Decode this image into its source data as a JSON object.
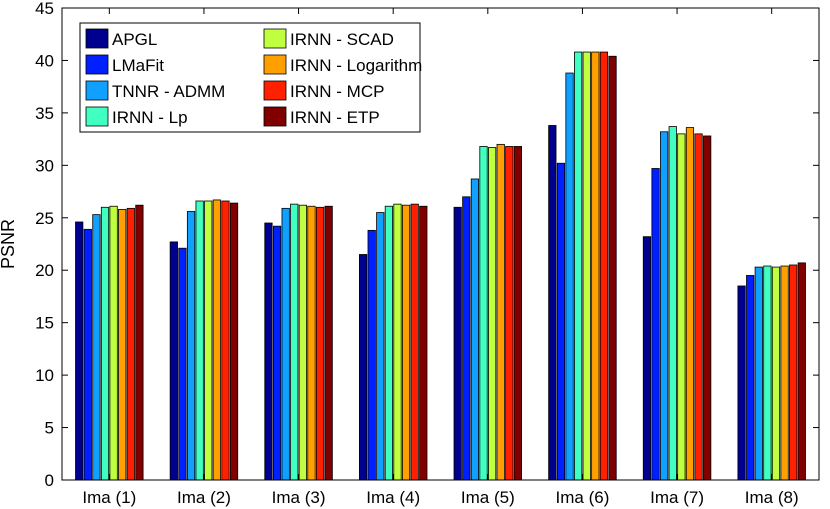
{
  "chart_data": {
    "type": "bar",
    "title": "",
    "xlabel": "",
    "ylabel": "PSNR",
    "ylim": [
      0,
      45
    ],
    "yticks": [
      0,
      5,
      10,
      15,
      20,
      25,
      30,
      35,
      40,
      45
    ],
    "grid": false,
    "legend_position": "top-left",
    "categories": [
      "Ima (1)",
      "Ima (2)",
      "Ima (3)",
      "Ima (4)",
      "Ima (5)",
      "Ima (6)",
      "Ima (7)",
      "Ima (8)"
    ],
    "series": [
      {
        "name": "APGL",
        "color": "#00008f",
        "values": [
          24.6,
          22.7,
          24.5,
          21.5,
          26.0,
          33.8,
          23.2,
          18.5
        ]
      },
      {
        "name": "LMaFit",
        "color": "#0020ff",
        "values": [
          23.9,
          22.1,
          24.2,
          23.8,
          27.0,
          30.2,
          29.7,
          19.5
        ]
      },
      {
        "name": "TNNR - ADMM",
        "color": "#10a0ff",
        "values": [
          25.3,
          25.6,
          25.9,
          25.5,
          28.7,
          38.8,
          33.2,
          20.3
        ]
      },
      {
        "name": "IRNN - Lp",
        "color": "#40ffc0",
        "values": [
          26.0,
          26.6,
          26.3,
          26.1,
          31.8,
          40.8,
          33.7,
          20.4
        ]
      },
      {
        "name": "IRNN - SCAD",
        "color": "#c0ff40",
        "values": [
          26.1,
          26.6,
          26.2,
          26.3,
          31.7,
          40.8,
          33.0,
          20.3
        ]
      },
      {
        "name": "IRNN - Logarithm",
        "color": "#ffa000",
        "values": [
          25.8,
          26.7,
          26.1,
          26.2,
          32.0,
          40.8,
          33.6,
          20.4
        ]
      },
      {
        "name": "IRNN - MCP",
        "color": "#ff2000",
        "values": [
          25.9,
          26.6,
          26.0,
          26.3,
          31.8,
          40.8,
          33.0,
          20.5
        ]
      },
      {
        "name": "IRNN - ETP",
        "color": "#800000",
        "values": [
          26.2,
          26.4,
          26.1,
          26.1,
          31.8,
          40.4,
          32.8,
          20.7
        ]
      }
    ]
  }
}
